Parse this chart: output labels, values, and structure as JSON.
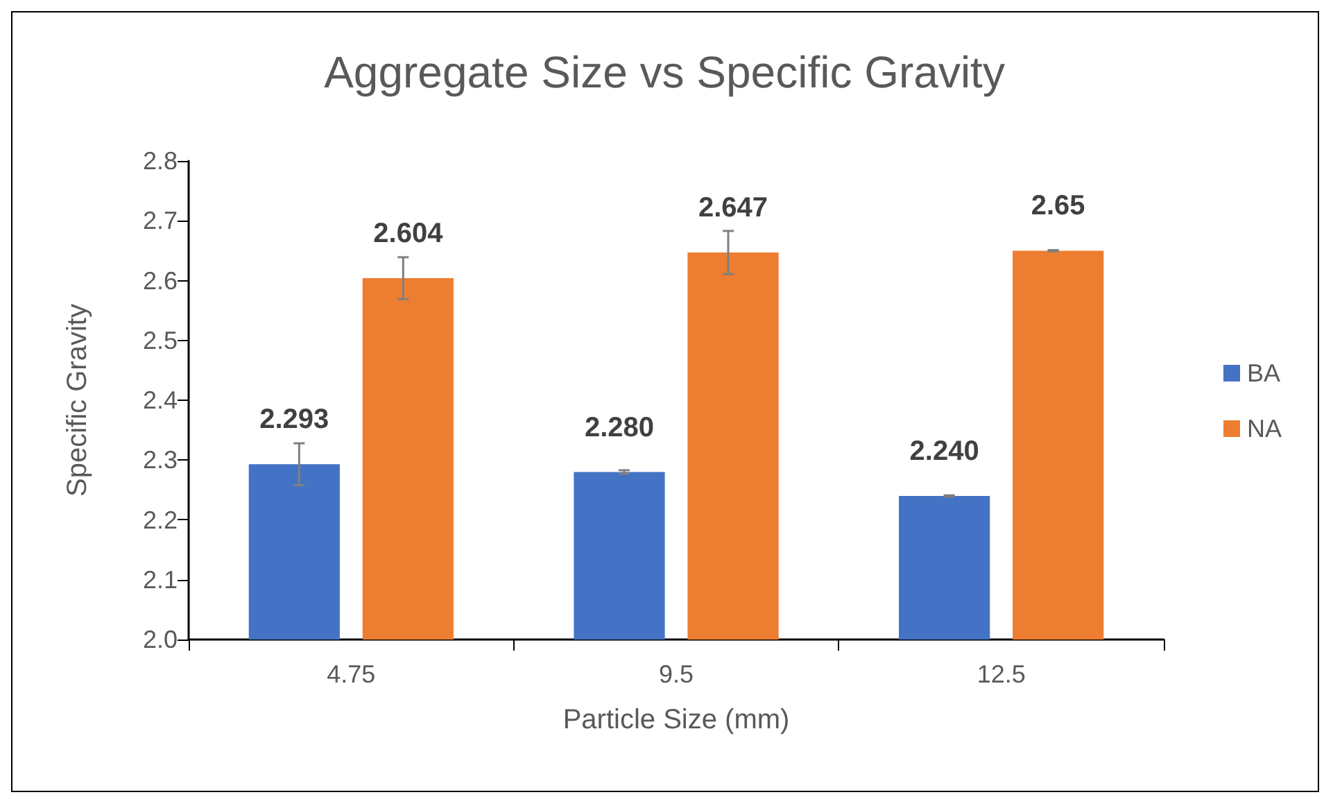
{
  "chart_data": {
    "type": "bar",
    "title": "Aggregate Size vs Specific Gravity",
    "xlabel": "Particle Size (mm)",
    "ylabel": "Specific Gravity",
    "categories": [
      "4.75",
      "9.5",
      "12.5"
    ],
    "series": [
      {
        "name": "BA",
        "color": "#4472c4",
        "values": [
          2.293,
          2.28,
          2.24
        ],
        "value_labels": [
          "2.293",
          "2.280",
          "2.240"
        ],
        "errors": [
          0.035,
          0.003,
          0.001
        ]
      },
      {
        "name": "NA",
        "color": "#ed7d31",
        "values": [
          2.604,
          2.647,
          2.65
        ],
        "value_labels": [
          "2.604",
          "2.647",
          "2.65"
        ],
        "errors": [
          0.035,
          0.036,
          0.001
        ]
      }
    ],
    "ylim": [
      2.0,
      2.8
    ],
    "yticks": [
      {
        "value": 2.0,
        "label": "2.0"
      },
      {
        "value": 2.1,
        "label": "2.1"
      },
      {
        "value": 2.2,
        "label": "2.2"
      },
      {
        "value": 2.3,
        "label": "2.3"
      },
      {
        "value": 2.4,
        "label": "2.4"
      },
      {
        "value": 2.5,
        "label": "2.5"
      },
      {
        "value": 2.6,
        "label": "2.6"
      },
      {
        "value": 2.7,
        "label": "2.7"
      },
      {
        "value": 2.8,
        "label": "2.8"
      }
    ],
    "grid": false,
    "legend": "right"
  }
}
